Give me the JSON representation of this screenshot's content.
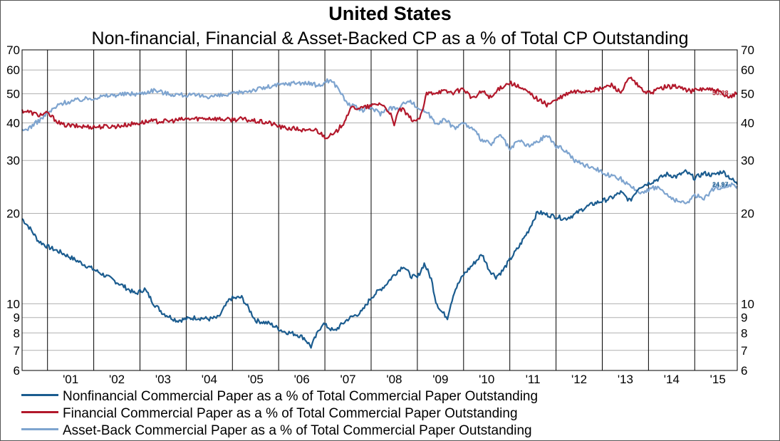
{
  "chart_data": {
    "type": "line",
    "title": "United States",
    "subtitle": "Non-financial, Financial & Asset-Backed CP as a % of Total CP Outstanding",
    "y_scale": "log",
    "ylim": [
      6,
      70
    ],
    "y_ticks": [
      6,
      7,
      8,
      9,
      10,
      20,
      30,
      40,
      50,
      60,
      70
    ],
    "xlim": [
      2000.45,
      2015.92
    ],
    "x_ticks": [
      "'01",
      "'02",
      "'03",
      "'04",
      "'05",
      "'06",
      "'07",
      "'08",
      "'09",
      "'10",
      "'11",
      "'12",
      "'13",
      "'14",
      "'15"
    ],
    "grid": true,
    "legend_position": "bottom",
    "series": [
      {
        "name": "Nonfinancial Commercial Paper as a % of Total Commercial Paper Outstanding",
        "color": "#1b5c8f",
        "end_label": "24.97",
        "x": [
          2000.45,
          2000.6,
          2000.8,
          2001.0,
          2001.3,
          2001.6,
          2002.0,
          2002.5,
          2002.9,
          2003.1,
          2003.3,
          2003.5,
          2003.8,
          2004.2,
          2004.5,
          2004.7,
          2004.95,
          2005.2,
          2005.5,
          2005.8,
          2006.1,
          2006.4,
          2006.55,
          2006.7,
          2006.95,
          2007.2,
          2007.5,
          2007.8,
          2008.0,
          2008.3,
          2008.5,
          2008.7,
          2008.85,
          2009.0,
          2009.15,
          2009.3,
          2009.4,
          2009.5,
          2009.65,
          2009.8,
          2010.0,
          2010.2,
          2010.4,
          2010.55,
          2010.7,
          2010.85,
          2011.0,
          2011.2,
          2011.4,
          2011.6,
          2011.8,
          2012.0,
          2012.2,
          2012.4,
          2012.6,
          2012.8,
          2013.0,
          2013.2,
          2013.4,
          2013.6,
          2013.8,
          2014.0,
          2014.2,
          2014.4,
          2014.6,
          2014.8,
          2015.0,
          2015.2,
          2015.4,
          2015.6,
          2015.8,
          2015.92
        ],
        "y": [
          19.2,
          18.0,
          16.2,
          15.5,
          14.8,
          14.0,
          13.0,
          11.8,
          10.8,
          11.2,
          10.0,
          9.3,
          8.8,
          9.0,
          8.9,
          9.0,
          10.4,
          10.5,
          8.8,
          8.6,
          8.1,
          7.9,
          7.7,
          7.2,
          8.6,
          8.1,
          8.9,
          9.4,
          10.5,
          11.5,
          12.5,
          13.4,
          12.4,
          12.2,
          13.6,
          12.1,
          10.2,
          9.5,
          9.0,
          11.0,
          12.5,
          13.5,
          14.6,
          13.0,
          12.3,
          12.9,
          14.0,
          15.5,
          17.5,
          20.2,
          19.8,
          19.5,
          19.2,
          19.8,
          20.8,
          21.5,
          22.0,
          22.5,
          23.5,
          22.0,
          24.5,
          25.2,
          26.0,
          27.0,
          26.5,
          27.5,
          26.2,
          27.2,
          26.8,
          27.6,
          26.0,
          24.97
        ]
      },
      {
        "name": "Financial Commercial Paper as a % of Total Commercial Paper Outstanding",
        "color": "#b2182b",
        "end_label": "50.28",
        "x": [
          2000.45,
          2000.6,
          2000.8,
          2001.0,
          2001.3,
          2001.6,
          2002.0,
          2002.5,
          2002.9,
          2003.2,
          2003.6,
          2004.0,
          2004.5,
          2004.9,
          2005.2,
          2005.5,
          2005.8,
          2006.1,
          2006.4,
          2006.6,
          2006.8,
          2007.0,
          2007.2,
          2007.4,
          2007.5,
          2007.6,
          2007.8,
          2008.0,
          2008.2,
          2008.4,
          2008.5,
          2008.6,
          2008.7,
          2008.8,
          2008.9,
          2009.0,
          2009.1,
          2009.2,
          2009.5,
          2009.8,
          2010.0,
          2010.2,
          2010.4,
          2010.6,
          2010.8,
          2011.0,
          2011.2,
          2011.4,
          2011.6,
          2011.8,
          2012.0,
          2012.3,
          2012.6,
          2012.9,
          2013.2,
          2013.4,
          2013.6,
          2013.8,
          2014.0,
          2014.3,
          2014.6,
          2014.9,
          2015.2,
          2015.5,
          2015.7,
          2015.92
        ],
        "y": [
          44.0,
          43.5,
          42.5,
          43.0,
          39.5,
          39.0,
          38.8,
          39.0,
          39.8,
          40.5,
          40.5,
          41.2,
          41.5,
          41.0,
          41.2,
          40.5,
          40.0,
          38.5,
          38.2,
          37.5,
          38.0,
          36.0,
          36.5,
          40.0,
          43.0,
          45.0,
          44.8,
          45.5,
          46.5,
          43.5,
          39.0,
          44.5,
          44.0,
          42.0,
          41.0,
          40.5,
          43.0,
          50.0,
          51.0,
          50.5,
          52.0,
          48.0,
          51.0,
          48.5,
          52.5,
          54.5,
          52.5,
          50.5,
          48.0,
          46.0,
          47.5,
          50.5,
          51.0,
          51.5,
          53.5,
          50.5,
          56.5,
          52.5,
          50.0,
          52.5,
          53.0,
          51.0,
          52.0,
          51.0,
          48.5,
          50.28
        ]
      },
      {
        "name": "Asset-Back Commercial Paper as a % of Total Commercial Paper Outstanding",
        "color": "#7ea4cf",
        "end_label": "24.66",
        "x": [
          2000.45,
          2000.6,
          2000.8,
          2001.0,
          2001.3,
          2001.6,
          2002.0,
          2002.4,
          2002.8,
          2003.0,
          2003.3,
          2003.6,
          2004.0,
          2004.5,
          2004.9,
          2005.3,
          2005.6,
          2006.0,
          2006.4,
          2006.7,
          2006.9,
          2007.05,
          2007.15,
          2007.3,
          2007.45,
          2007.6,
          2007.8,
          2008.0,
          2008.2,
          2008.4,
          2008.6,
          2008.8,
          2009.0,
          2009.2,
          2009.4,
          2009.6,
          2009.8,
          2010.0,
          2010.2,
          2010.4,
          2010.6,
          2010.8,
          2011.0,
          2011.2,
          2011.4,
          2011.6,
          2011.8,
          2012.0,
          2012.2,
          2012.4,
          2012.6,
          2012.8,
          2013.0,
          2013.2,
          2013.4,
          2013.6,
          2013.8,
          2014.0,
          2014.2,
          2014.4,
          2014.6,
          2014.8,
          2015.0,
          2015.2,
          2015.4,
          2015.6,
          2015.8,
          2015.92
        ],
        "y": [
          37.5,
          38.5,
          40.5,
          43.0,
          46.5,
          47.5,
          48.5,
          49.5,
          50.0,
          50.0,
          51.5,
          50.0,
          49.5,
          49.0,
          49.5,
          51.0,
          52.0,
          53.5,
          54.5,
          54.0,
          53.0,
          55.5,
          55.0,
          52.0,
          47.0,
          45.5,
          44.0,
          45.0,
          43.0,
          45.0,
          44.5,
          48.0,
          45.0,
          43.5,
          40.0,
          41.0,
          38.5,
          40.0,
          38.0,
          35.0,
          34.0,
          36.5,
          32.5,
          35.0,
          33.5,
          34.5,
          36.5,
          33.5,
          32.5,
          30.0,
          29.0,
          28.5,
          27.5,
          26.5,
          26.0,
          24.5,
          23.5,
          24.0,
          24.5,
          23.0,
          22.0,
          21.5,
          23.0,
          22.5,
          24.0,
          24.5,
          25.0,
          24.66
        ]
      }
    ]
  }
}
